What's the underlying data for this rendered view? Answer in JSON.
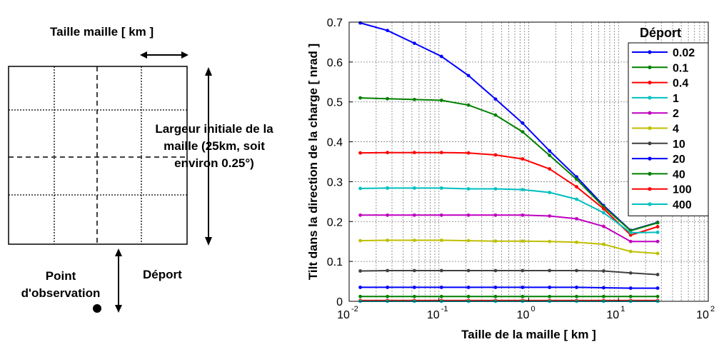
{
  "diagram": {
    "top_label": "Taille maille [ km ]",
    "width_label_lines": [
      "Largeur initiale de la",
      "maille (25km, soit",
      "environ 0.25°)"
    ],
    "offset_label": "Déport",
    "point_label_lines": [
      "Point",
      "d'observation"
    ]
  },
  "chart_data": {
    "type": "line",
    "xscale": "log",
    "xlim": [
      0.01,
      100
    ],
    "ylim": [
      0,
      0.7
    ],
    "xlabel": "Taille de la maille [ km ]",
    "ylabel": "Tilt  dans la direction de la charge [ nrad ]",
    "xticks": [
      "10",
      "10",
      "10",
      "10",
      "10"
    ],
    "xtick_exponents": [
      "-2",
      "-1",
      "0",
      "1",
      "2"
    ],
    "yticks": [
      "0",
      "0.1",
      "0.2",
      "0.3",
      "0.4",
      "0.5",
      "0.6",
      "0.7"
    ],
    "grid": true,
    "legend_title": "Déport",
    "legend_position": "top-right",
    "x": [
      0.0133,
      0.0267,
      0.0533,
      0.1067,
      0.2133,
      0.4267,
      0.8533,
      1.7067,
      3.4133,
      6.8267,
      13.6533,
      27.3067
    ],
    "series": [
      {
        "name": "0.02",
        "color": "#0000ff",
        "values": [
          0.698,
          0.679,
          0.647,
          0.614,
          0.566,
          0.507,
          0.447,
          0.377,
          0.312,
          0.24,
          0.178,
          0.198
        ]
      },
      {
        "name": "0.1",
        "color": "#008000",
        "values": [
          0.51,
          0.508,
          0.506,
          0.504,
          0.492,
          0.467,
          0.425,
          0.366,
          0.306,
          0.237,
          0.177,
          0.197
        ]
      },
      {
        "name": "0.4",
        "color": "#ff0000",
        "values": [
          0.372,
          0.373,
          0.373,
          0.373,
          0.372,
          0.367,
          0.357,
          0.332,
          0.287,
          0.232,
          0.166,
          0.187
        ]
      },
      {
        "name": "1",
        "color": "#00bfbf",
        "values": [
          0.283,
          0.284,
          0.284,
          0.284,
          0.282,
          0.282,
          0.28,
          0.273,
          0.256,
          0.222,
          0.172,
          0.173
        ]
      },
      {
        "name": "2",
        "color": "#bf00bf",
        "values": [
          0.216,
          0.216,
          0.216,
          0.216,
          0.216,
          0.216,
          0.216,
          0.214,
          0.207,
          0.188,
          0.15,
          0.15
        ]
      },
      {
        "name": "4",
        "color": "#bfbf00",
        "values": [
          0.152,
          0.153,
          0.153,
          0.153,
          0.152,
          0.151,
          0.151,
          0.15,
          0.148,
          0.143,
          0.125,
          0.12
        ]
      },
      {
        "name": "10",
        "color": "#404040",
        "values": [
          0.076,
          0.077,
          0.077,
          0.077,
          0.077,
          0.077,
          0.077,
          0.077,
          0.077,
          0.076,
          0.071,
          0.067
        ]
      },
      {
        "name": "20",
        "color": "#0000ff",
        "values": [
          0.035,
          0.035,
          0.035,
          0.035,
          0.035,
          0.035,
          0.035,
          0.035,
          0.035,
          0.034,
          0.033,
          0.033
        ]
      },
      {
        "name": "40",
        "color": "#008000",
        "values": [
          0.012,
          0.012,
          0.012,
          0.012,
          0.012,
          0.012,
          0.012,
          0.012,
          0.012,
          0.012,
          0.012,
          0.012
        ]
      },
      {
        "name": "100",
        "color": "#ff0000",
        "values": [
          0.002,
          0.002,
          0.002,
          0.002,
          0.002,
          0.002,
          0.002,
          0.002,
          0.002,
          0.002,
          0.002,
          0.002
        ]
      },
      {
        "name": "400",
        "color": "#00bfbf",
        "values": [
          0.0,
          0.0,
          0.0,
          0.0,
          0.0,
          0.0,
          0.0,
          0.0,
          0.0,
          0.0,
          0.0,
          0.0
        ]
      }
    ]
  }
}
